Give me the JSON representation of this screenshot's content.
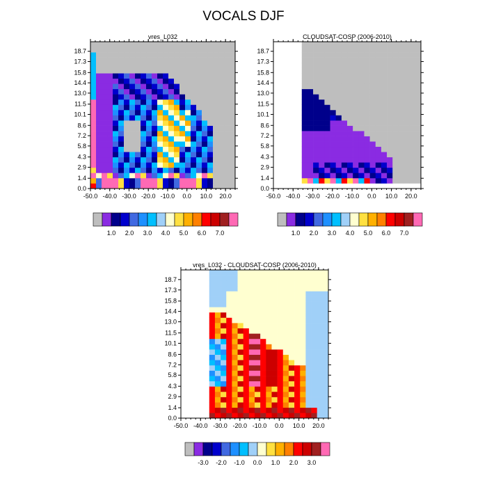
{
  "figure": {
    "title": "VOCALS DJF"
  },
  "chart_data": [
    {
      "type": "heatmap",
      "title": "vres_L032",
      "xlabel": "",
      "ylabel": "",
      "x_ticks": [
        "-50.0",
        "-40.0",
        "-30.0",
        "-20.0",
        "-10.0",
        "0.0",
        "10.0",
        "20.0"
      ],
      "y_ticks": [
        "0.0",
        "1.4",
        "2.9",
        "4.3",
        "5.8",
        "7.2",
        "8.6",
        "10.1",
        "11.5",
        "13.0",
        "14.4",
        "15.8",
        "17.3",
        "18.7"
      ],
      "xlim": [
        -50,
        25
      ],
      "ylim": [
        0,
        20
      ],
      "levels": [
        "0.5",
        "1.0",
        "1.5",
        "2.0",
        "2.5",
        "3.0",
        "3.5",
        "4.0",
        "4.5",
        "5.0",
        "5.5",
        "6.0",
        "6.5",
        "7.0",
        "7.5"
      ],
      "colorbar_labels": [
        "1.0",
        "2.0",
        "3.0",
        "4.0",
        "5.0",
        "6.0",
        "7.0"
      ],
      "missing_color": "#bebebe"
    },
    {
      "type": "heatmap",
      "title": "CLOUDSAT-COSP (2006-2010)",
      "xlabel": "",
      "ylabel": "",
      "x_ticks": [
        "-50.0",
        "-40.0",
        "-30.0",
        "-20.0",
        "-10.0",
        "0.0",
        "10.0",
        "20.0"
      ],
      "y_ticks": [
        "0.0",
        "1.4",
        "2.9",
        "4.3",
        "5.8",
        "7.2",
        "8.6",
        "10.1",
        "11.5",
        "13.0",
        "14.4",
        "15.8",
        "17.3",
        "18.7"
      ],
      "xlim": [
        -50,
        25
      ],
      "ylim": [
        0,
        20
      ],
      "levels": [
        "0.5",
        "1.0",
        "1.5",
        "2.0",
        "2.5",
        "3.0",
        "3.5",
        "4.0",
        "4.5",
        "5.0",
        "5.5",
        "6.0",
        "6.5",
        "7.0",
        "7.5"
      ],
      "colorbar_labels": [
        "1.0",
        "2.0",
        "3.0",
        "4.0",
        "5.0",
        "6.0",
        "7.0"
      ],
      "missing_color": "#bebebe"
    },
    {
      "type": "heatmap",
      "title": "vres_L032 - CLOUDSAT-COSP (2006-2010)",
      "xlabel": "",
      "ylabel": "",
      "x_ticks": [
        "-50.0",
        "-40.0",
        "-30.0",
        "-20.0",
        "-10.0",
        "0.0",
        "10.0",
        "20.0"
      ],
      "y_ticks": [
        "0.0",
        "1.4",
        "2.9",
        "4.3",
        "5.8",
        "7.2",
        "8.6",
        "10.1",
        "11.5",
        "13.0",
        "14.4",
        "15.8",
        "17.3",
        "18.7"
      ],
      "xlim": [
        -50,
        25
      ],
      "ylim": [
        0,
        20
      ],
      "levels": [
        "-3.5",
        "-3.0",
        "-2.5",
        "-2.0",
        "-1.5",
        "-1.0",
        "-0.5",
        "0.0",
        "0.5",
        "1.0",
        "1.5",
        "2.0",
        "2.5",
        "3.0",
        "3.5"
      ],
      "colorbar_labels": [
        "-3.0",
        "-2.0",
        "-1.0",
        "0.0",
        "1.0",
        "2.0",
        "3.0"
      ],
      "missing_color": "#bebebe"
    }
  ],
  "palette": [
    "#bebebe",
    "#8a2be2",
    "#00008b",
    "#0000cd",
    "#4169e1",
    "#1e90ff",
    "#00bfff",
    "#a0d0f8",
    "#ffffd0",
    "#ffe040",
    "#ffb000",
    "#ff8000",
    "#ff0000",
    "#cc0000",
    "#a02020",
    "#ff69b4"
  ]
}
